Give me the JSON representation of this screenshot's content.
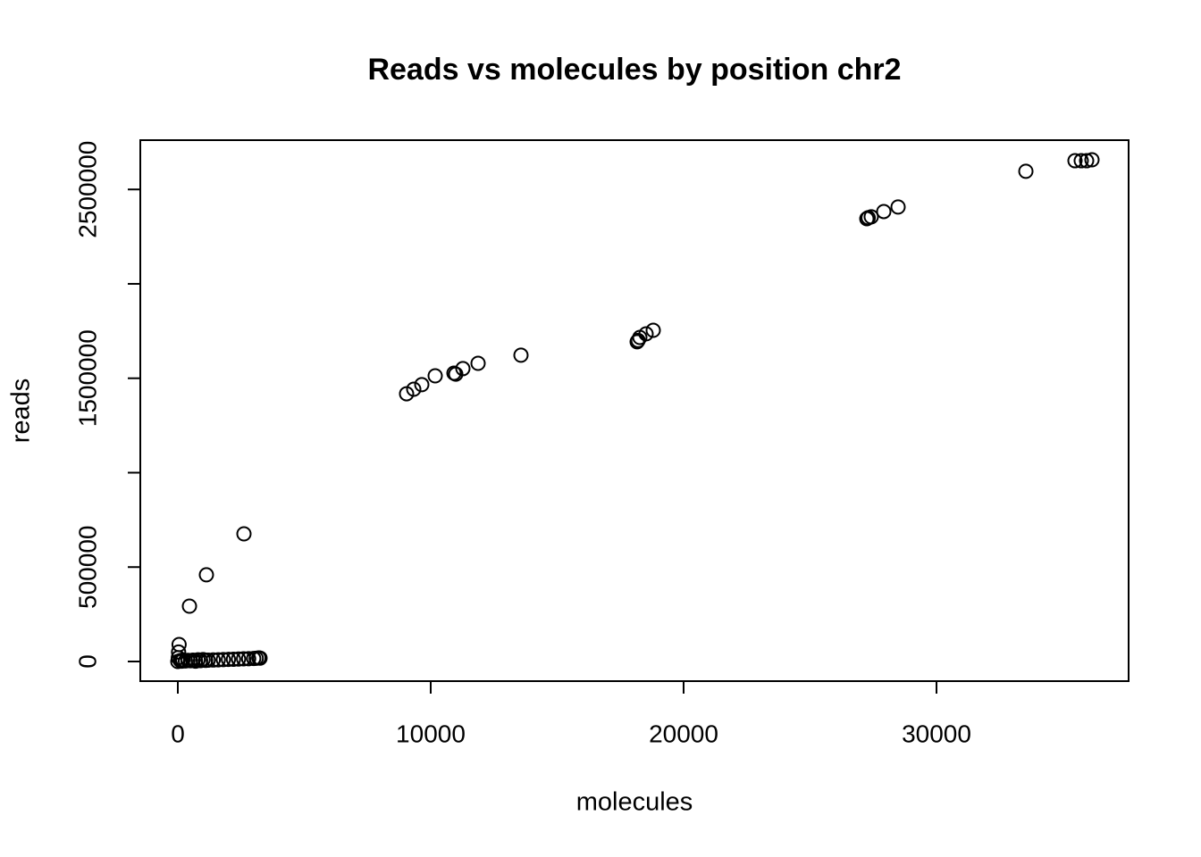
{
  "chart_data": {
    "type": "scatter",
    "title": "Reads vs molecules by position chr2",
    "x_label": "molecules",
    "y_label": "reads",
    "xlim": [
      -1484,
      37597
    ],
    "ylim": [
      -104000,
      2761000
    ],
    "xticks": [
      0,
      10000,
      20000,
      30000
    ],
    "yticks": [
      0,
      500000,
      {
        "value": 1000000,
        "label": null
      },
      1500000,
      {
        "value": 2000000,
        "label": null
      },
      2500000
    ],
    "color": "#000000",
    "x": [
      0,
      20,
      50,
      30,
      100,
      150,
      200,
      300,
      400,
      500,
      600,
      700,
      800,
      900,
      1000,
      1100,
      1200,
      1400,
      1600,
      1800,
      2000,
      2200,
      2400,
      2600,
      2800,
      3000,
      3100,
      3200,
      3250,
      460,
      1130,
      2615,
      9046,
      9329,
      9647,
      10177,
      10919,
      10990,
      11272,
      11873,
      13569,
      18163,
      18200,
      18269,
      18516,
      18799,
      27244,
      27300,
      27420,
      27915,
      28481,
      33534,
      35477,
      35724,
      35936,
      36148
    ],
    "y": [
      0,
      20000,
      89800,
      50000,
      5000,
      2000,
      8000,
      3000,
      6000,
      4000,
      7000,
      2000,
      9000,
      5000,
      10000,
      6000,
      7000,
      8000,
      9000,
      10000,
      11000,
      12000,
      13000,
      14000,
      15000,
      16000,
      17000,
      19000,
      18000,
      293000,
      459000,
      676000,
      1418000,
      1442000,
      1466000,
      1513000,
      1527000,
      1522000,
      1551000,
      1579000,
      1622000,
      1693000,
      1700000,
      1716000,
      1735000,
      1754000,
      2345000,
      2350000,
      2355000,
      2383000,
      2407000,
      2596000,
      2652000,
      2652000,
      2652000,
      2657000
    ]
  }
}
